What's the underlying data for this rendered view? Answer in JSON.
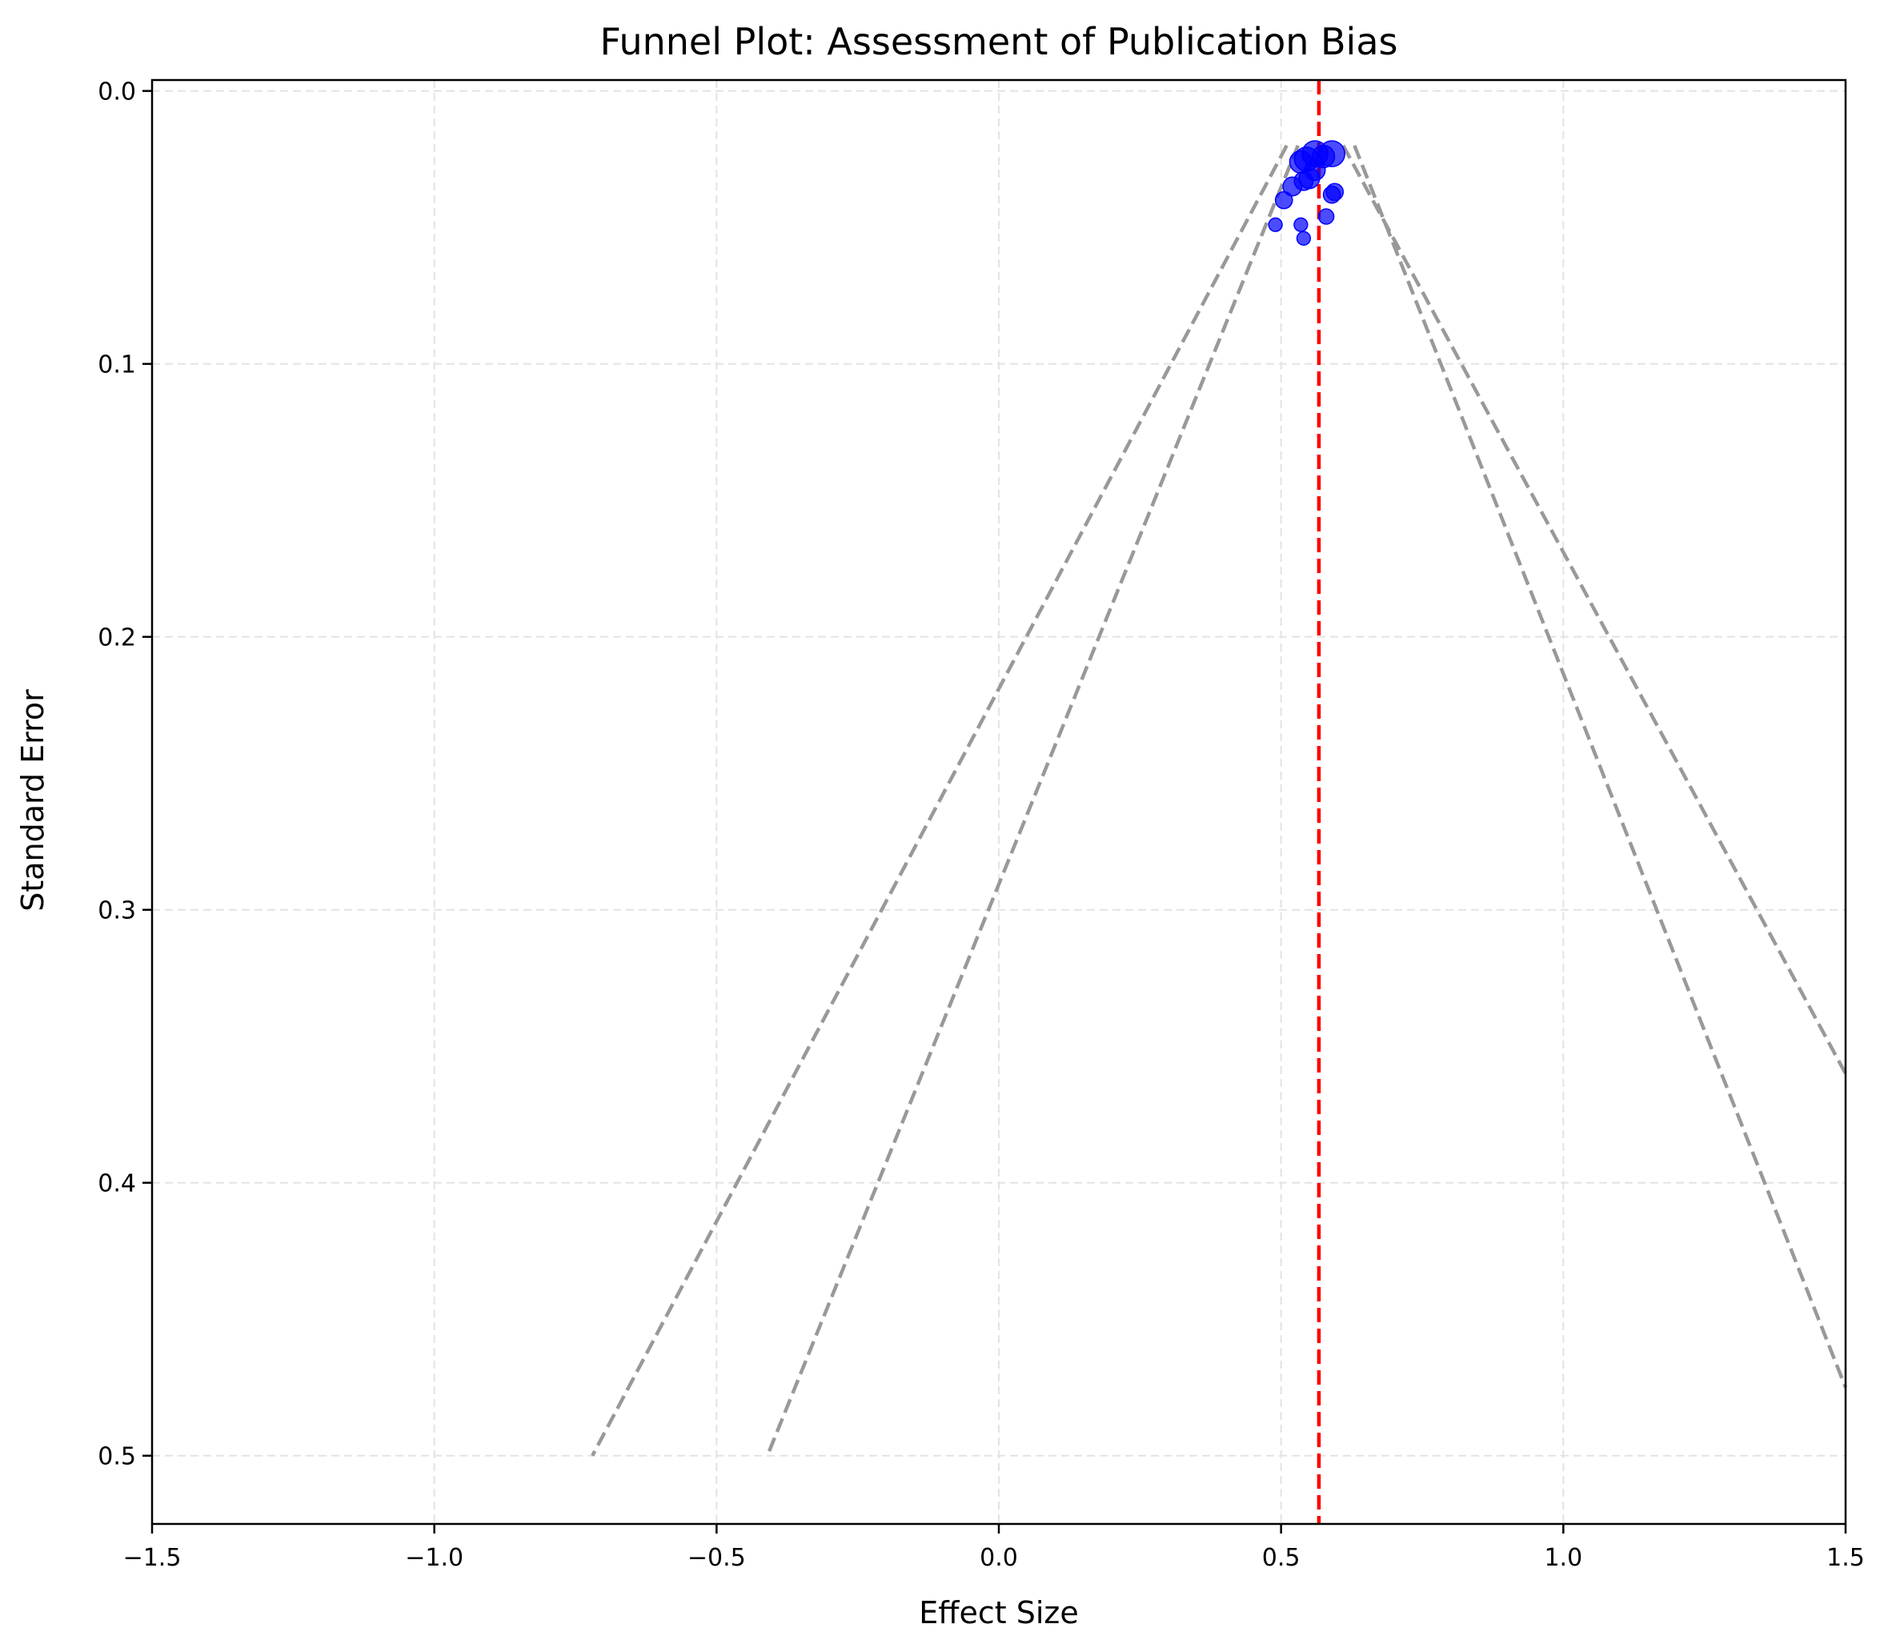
{
  "chart_data": {
    "type": "scatter",
    "title": "Funnel Plot: Assessment of Publication Bias",
    "xlabel": "Effect Size",
    "ylabel": "Standard Error",
    "xlim": [
      -1.5,
      1.5
    ],
    "ylim": [
      0.525,
      -0.004
    ],
    "y_inverted": true,
    "grid": true,
    "grid_style": "dashed",
    "x_ticks": [
      -1.5,
      -1.0,
      -0.5,
      0.0,
      0.5,
      1.0,
      1.5
    ],
    "x_tick_labels": [
      "−1.5",
      "−1.0",
      "−0.5",
      "0.0",
      "0.5",
      "1.0",
      "1.5"
    ],
    "y_ticks": [
      0.0,
      0.1,
      0.2,
      0.3,
      0.4,
      0.5
    ],
    "y_tick_labels": [
      "0.0",
      "0.1",
      "0.2",
      "0.3",
      "0.4",
      "0.5"
    ],
    "pooled_effect": 0.567,
    "pooled_line_color": "#ff0000",
    "point_color": "#0000ff",
    "funnel_color": "#999999",
    "funnel_lines": [
      {
        "points": [
          [
            0.51,
            0.02
          ],
          [
            -0.72,
            0.5
          ]
        ]
      },
      {
        "points": [
          [
            0.53,
            0.02
          ],
          [
            -0.41,
            0.5
          ]
        ]
      },
      {
        "points": [
          [
            0.61,
            0.02
          ],
          [
            1.5,
            0.36
          ]
        ]
      },
      {
        "points": [
          [
            0.63,
            0.02
          ],
          [
            1.5,
            0.475
          ]
        ]
      }
    ],
    "points": [
      {
        "x": 0.59,
        "y": 0.023,
        "weight": 11
      },
      {
        "x": 0.56,
        "y": 0.023,
        "weight": 11
      },
      {
        "x": 0.545,
        "y": 0.025,
        "weight": 10
      },
      {
        "x": 0.535,
        "y": 0.026,
        "weight": 9
      },
      {
        "x": 0.575,
        "y": 0.024,
        "weight": 9
      },
      {
        "x": 0.56,
        "y": 0.029,
        "weight": 8
      },
      {
        "x": 0.55,
        "y": 0.032,
        "weight": 8
      },
      {
        "x": 0.54,
        "y": 0.033,
        "weight": 7
      },
      {
        "x": 0.52,
        "y": 0.035,
        "weight": 7
      },
      {
        "x": 0.595,
        "y": 0.037,
        "weight": 6
      },
      {
        "x": 0.59,
        "y": 0.038,
        "weight": 6
      },
      {
        "x": 0.505,
        "y": 0.04,
        "weight": 6
      },
      {
        "x": 0.58,
        "y": 0.046,
        "weight": 5
      },
      {
        "x": 0.49,
        "y": 0.049,
        "weight": 4
      },
      {
        "x": 0.535,
        "y": 0.049,
        "weight": 4
      },
      {
        "x": 0.54,
        "y": 0.054,
        "weight": 4
      }
    ]
  }
}
